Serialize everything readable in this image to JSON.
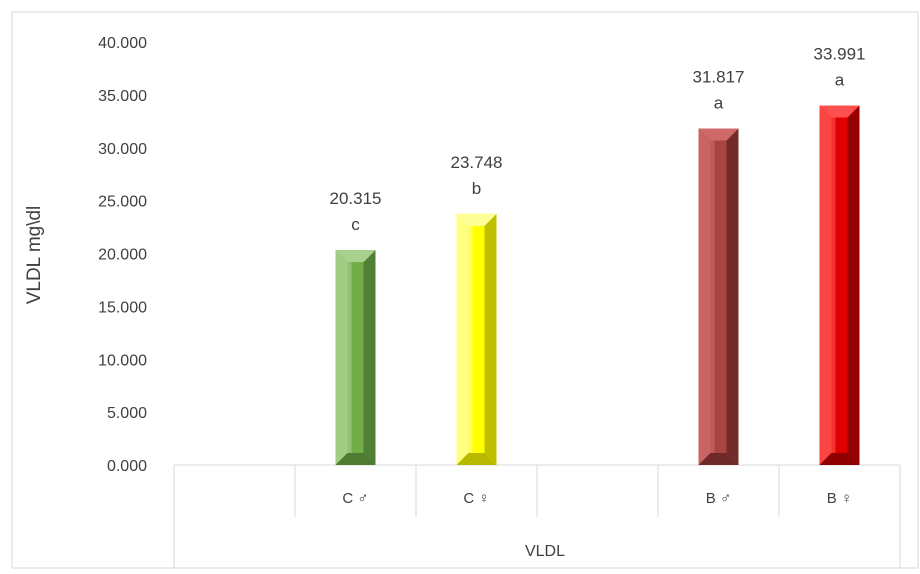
{
  "chart_data": {
    "type": "bar",
    "title": "",
    "ylabel": "VLDL mg\\dl",
    "ylim": [
      0,
      40
    ],
    "yticks": [
      "0.000",
      "5.000",
      "10.000",
      "15.000",
      "20.000",
      "25.000",
      "30.000",
      "35.000",
      "40.000"
    ],
    "group_label": "VLDL",
    "grid": false,
    "legend": "none",
    "categories": [
      "",
      "C ♂",
      "C ♀",
      "",
      "B ♂",
      "B ♀"
    ],
    "bars": [
      {
        "category": "C ♂",
        "slot": 1,
        "value": 20.315,
        "value_label": "20.315",
        "letter": "c",
        "color": "#70AD47",
        "light": "#A9D18E",
        "dark": "#4E7A31"
      },
      {
        "category": "C ♀",
        "slot": 2,
        "value": 23.748,
        "value_label": "23.748",
        "letter": "b",
        "color": "#FFFF00",
        "light": "#FFFF99",
        "dark": "#B8B800"
      },
      {
        "category": "B ♂",
        "slot": 4,
        "value": 31.817,
        "value_label": "31.817",
        "letter": "a",
        "color": "#A94442",
        "light": "#D06A68",
        "dark": "#6E2A29"
      },
      {
        "category": "B ♀",
        "slot": 5,
        "value": 33.991,
        "value_label": "33.991",
        "letter": "a",
        "color": "#E00000",
        "light": "#FF5050",
        "dark": "#8E0000"
      }
    ]
  }
}
